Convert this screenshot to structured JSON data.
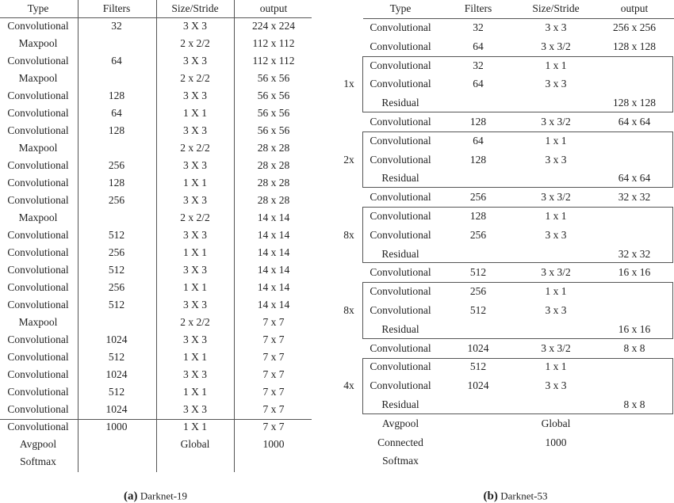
{
  "darknet19": {
    "headers": [
      "Type",
      "Filters",
      "Size/Stride",
      "output"
    ],
    "rows": [
      [
        "Convolutional",
        "32",
        "3  X 3",
        "224 x 224"
      ],
      [
        "Maxpool",
        "",
        "2 x 2/2",
        "112 x 112"
      ],
      [
        "Convolutional",
        "64",
        "3  X 3",
        "112 x 112"
      ],
      [
        "Maxpool",
        "",
        "2 x 2/2",
        "56 x 56"
      ],
      [
        "Convolutional",
        "128",
        "3  X 3",
        "56 x 56"
      ],
      [
        "Convolutional",
        "64",
        "1  X 1",
        "56 x 56"
      ],
      [
        "Convolutional",
        "128",
        "3  X 3",
        "56 x 56"
      ],
      [
        "Maxpool",
        "",
        "2 x 2/2",
        "28 x 28"
      ],
      [
        "Convolutional",
        "256",
        "3  X 3",
        "28 x 28"
      ],
      [
        "Convolutional",
        "128",
        "1  X 1",
        "28 x 28"
      ],
      [
        "Convolutional",
        "256",
        "3  X 3",
        "28 x 28"
      ],
      [
        "Maxpool",
        "",
        "2 x 2/2",
        "14 x 14"
      ],
      [
        "Convolutional",
        "512",
        "3  X 3",
        "14 x 14"
      ],
      [
        "Convolutional",
        "256",
        "1  X 1",
        "14 x 14"
      ],
      [
        "Convolutional",
        "512",
        "3  X 3",
        "14 x 14"
      ],
      [
        "Convolutional",
        "256",
        "1  X 1",
        "14 x 14"
      ],
      [
        "Convolutional",
        "512",
        "3  X 3",
        "14 x 14"
      ],
      [
        "Maxpool",
        "",
        "2 x 2/2",
        "7 x 7"
      ],
      [
        "Convolutional",
        "1024",
        "3  X 3",
        "7 x 7"
      ],
      [
        "Convolutional",
        "512",
        "1  X 1",
        "7 x 7"
      ],
      [
        "Convolutional",
        "1024",
        "3  X 3",
        "7 x 7"
      ],
      [
        "Convolutional",
        "512",
        "1  X 1",
        "7 x 7"
      ],
      [
        "Convolutional",
        "1024",
        "3  X 3",
        "7 x 7"
      ],
      [
        "Convolutional",
        "1000",
        "1  X 1",
        "7 x 7"
      ],
      [
        "Avgpool",
        "",
        "Global",
        "1000"
      ],
      [
        "Softmax",
        "",
        "",
        ""
      ]
    ],
    "caption_letter": "(a)",
    "caption_text": "Darknet-19"
  },
  "darknet53": {
    "headers": [
      "Type",
      "Filters",
      "Size/Stride",
      "output"
    ],
    "rows": [
      [
        "Convolutional",
        "32",
        "3 x 3",
        "256 x 256"
      ],
      [
        "Convolutional",
        "64",
        "3 x 3/2",
        "128 x 128"
      ],
      [
        "Convolutional",
        "32",
        "1 x 1",
        ""
      ],
      [
        "Convolutional",
        "64",
        "3 x 3",
        ""
      ],
      [
        "Residual",
        "",
        "",
        "128 x 128"
      ],
      [
        "Convolutional",
        "128",
        "3 x 3/2",
        "64 x 64"
      ],
      [
        "Convolutional",
        "64",
        "1 x 1",
        ""
      ],
      [
        "Convolutional",
        "128",
        "3 x 3",
        ""
      ],
      [
        "Residual",
        "",
        "",
        "64 x 64"
      ],
      [
        "Convolutional",
        "256",
        "3 x 3/2",
        "32 x 32"
      ],
      [
        "Convolutional",
        "128",
        "1 x 1",
        ""
      ],
      [
        "Convolutional",
        "256",
        "3 x 3",
        ""
      ],
      [
        "Residual",
        "",
        "",
        "32 x 32"
      ],
      [
        "Convolutional",
        "512",
        "3 x 3/2",
        "16 x 16"
      ],
      [
        "Convolutional",
        "256",
        "1 x 1",
        ""
      ],
      [
        "Convolutional",
        "512",
        "3 x 3",
        ""
      ],
      [
        "Residual",
        "",
        "",
        "16 x 16"
      ],
      [
        "Convolutional",
        "1024",
        "3 x 3/2",
        "8 x 8"
      ],
      [
        "Convolutional",
        "512",
        "1 x 1",
        ""
      ],
      [
        "Convolutional",
        "1024",
        "3 x 3",
        ""
      ],
      [
        "Residual",
        "",
        "",
        "8 x 8"
      ],
      [
        "Avgpool",
        "",
        "Global",
        ""
      ],
      [
        "Connected",
        "",
        "1000",
        ""
      ],
      [
        "Softmax",
        "",
        "",
        ""
      ]
    ],
    "blocks": [
      {
        "repeat": "1x",
        "first_row": 2
      },
      {
        "repeat": "2x",
        "first_row": 6
      },
      {
        "repeat": "8x",
        "first_row": 10
      },
      {
        "repeat": "8x",
        "first_row": 14
      },
      {
        "repeat": "4x",
        "first_row": 18
      }
    ],
    "caption_letter": "(b)",
    "caption_text": "Darknet-53"
  }
}
